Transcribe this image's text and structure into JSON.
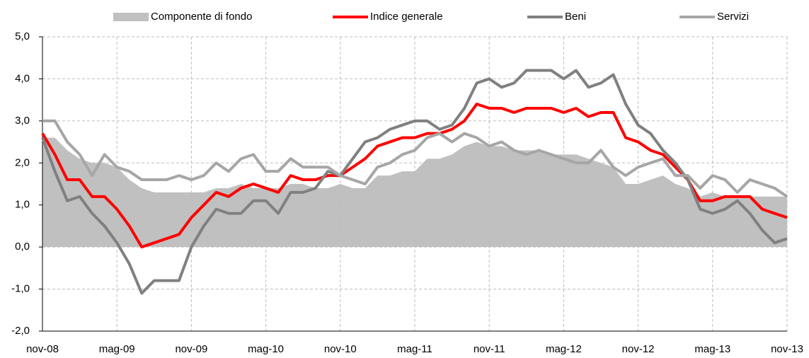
{
  "chart_data": {
    "type": "line",
    "categories": [
      "nov-08",
      null,
      null,
      null,
      null,
      null,
      "mag-09",
      null,
      null,
      null,
      null,
      null,
      "nov-09",
      null,
      null,
      null,
      null,
      null,
      "mag-10",
      null,
      null,
      null,
      null,
      null,
      "nov-10",
      null,
      null,
      null,
      null,
      null,
      "mag-11",
      null,
      null,
      null,
      null,
      null,
      "nov-11",
      null,
      null,
      null,
      null,
      null,
      "mag-12",
      null,
      null,
      null,
      null,
      null,
      "nov-12",
      null,
      null,
      null,
      null,
      null,
      "mag-13",
      null,
      null,
      null,
      null,
      null,
      "nov-13"
    ],
    "series": [
      {
        "name": "Componente di fondo",
        "color": "#c0c0c0",
        "fill": true,
        "values": [
          2.6,
          2.6,
          2.3,
          2.1,
          2.0,
          2.0,
          1.9,
          1.6,
          1.4,
          1.3,
          1.3,
          1.3,
          1.3,
          1.3,
          1.4,
          1.4,
          1.5,
          1.4,
          1.4,
          1.4,
          1.5,
          1.5,
          1.4,
          1.4,
          1.5,
          1.4,
          1.4,
          1.7,
          1.7,
          1.8,
          1.8,
          2.1,
          2.1,
          2.2,
          2.4,
          2.5,
          2.4,
          2.4,
          2.3,
          2.3,
          2.3,
          2.2,
          2.2,
          2.2,
          2.1,
          2.0,
          1.9,
          1.5,
          1.5,
          1.6,
          1.7,
          1.5,
          1.4,
          1.2,
          1.3,
          1.2,
          1.2,
          1.2,
          1.2,
          1.2,
          1.2
        ]
      },
      {
        "name": "Indice generale",
        "color": "#ff0000",
        "fill": false,
        "values": [
          2.7,
          2.2,
          1.6,
          1.6,
          1.2,
          1.2,
          0.9,
          0.5,
          0.0,
          0.1,
          0.2,
          0.3,
          0.7,
          1.0,
          1.3,
          1.2,
          1.4,
          1.5,
          1.4,
          1.3,
          1.7,
          1.6,
          1.6,
          1.7,
          1.7,
          1.9,
          2.1,
          2.4,
          2.5,
          2.6,
          2.6,
          2.7,
          2.7,
          2.8,
          3.0,
          3.4,
          3.3,
          3.3,
          3.2,
          3.3,
          3.3,
          3.3,
          3.2,
          3.3,
          3.1,
          3.2,
          3.2,
          2.6,
          2.5,
          2.3,
          2.2,
          1.9,
          1.6,
          1.1,
          1.1,
          1.2,
          1.2,
          1.2,
          0.9,
          0.8,
          0.7
        ]
      },
      {
        "name": "Beni",
        "color": "#808080",
        "fill": false,
        "values": [
          2.6,
          1.8,
          1.1,
          1.2,
          0.8,
          0.5,
          0.1,
          -0.4,
          -1.1,
          -0.8,
          -0.8,
          -0.8,
          0.0,
          0.5,
          0.9,
          0.8,
          0.8,
          1.1,
          1.1,
          0.8,
          1.3,
          1.3,
          1.4,
          1.8,
          1.7,
          2.1,
          2.5,
          2.6,
          2.8,
          2.9,
          3.0,
          3.0,
          2.8,
          2.9,
          3.3,
          3.9,
          4.0,
          3.8,
          3.9,
          4.2,
          4.2,
          4.2,
          4.0,
          4.2,
          3.8,
          3.9,
          4.1,
          3.4,
          2.9,
          2.7,
          2.3,
          2.0,
          1.6,
          0.9,
          0.8,
          0.9,
          1.1,
          0.8,
          0.4,
          0.1,
          0.2
        ]
      },
      {
        "name": "Servizi",
        "color": "#a6a6a6",
        "fill": false,
        "values": [
          3.0,
          3.0,
          2.5,
          2.2,
          1.7,
          2.2,
          1.9,
          1.8,
          1.6,
          1.6,
          1.6,
          1.7,
          1.6,
          1.7,
          2.0,
          1.8,
          2.1,
          2.2,
          1.8,
          1.8,
          2.1,
          1.9,
          1.9,
          1.9,
          1.7,
          1.6,
          1.5,
          1.9,
          2.0,
          2.2,
          2.3,
          2.6,
          2.7,
          2.5,
          2.7,
          2.6,
          2.4,
          2.5,
          2.3,
          2.2,
          2.3,
          2.2,
          2.1,
          2.0,
          2.0,
          2.3,
          1.9,
          1.7,
          1.9,
          2.0,
          2.1,
          1.7,
          1.7,
          1.4,
          1.7,
          1.6,
          1.3,
          1.6,
          1.5,
          1.4,
          1.2
        ]
      }
    ],
    "ylim": [
      -2,
      5
    ],
    "yticks": [
      {
        "value": -2,
        "label": "-2,0"
      },
      {
        "value": -1,
        "label": "-1,0"
      },
      {
        "value": 0,
        "label": "0,0"
      },
      {
        "value": 1,
        "label": "1,0"
      },
      {
        "value": 2,
        "label": "2,0"
      },
      {
        "value": 3,
        "label": "3,0"
      },
      {
        "value": 4,
        "label": "4,0"
      },
      {
        "value": 5,
        "label": "5,0"
      }
    ],
    "grid": true
  }
}
